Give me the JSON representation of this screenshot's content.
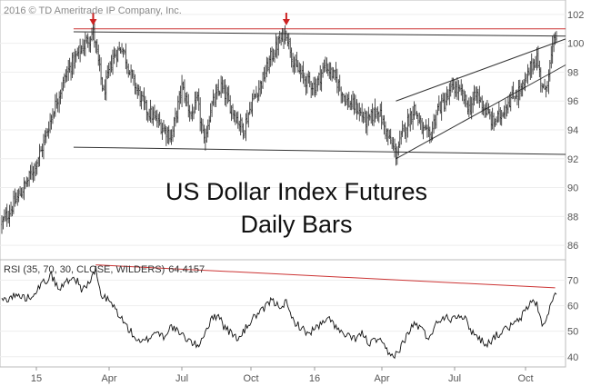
{
  "chart_data": [
    {
      "type": "ohlc",
      "copyright": "2016 © TD Ameritrade IP Company, Inc.",
      "title_line1": "US Dollar Index Futures",
      "title_line2": "Daily Bars",
      "ylim": [
        85,
        103
      ],
      "y_ticks": [
        86,
        88,
        90,
        92,
        94,
        96,
        98,
        100,
        102
      ],
      "x_ticks": [
        "15",
        "Apr",
        "Jul",
        "Oct",
        "16",
        "Apr",
        "Jul",
        "Oct"
      ],
      "anchors": [
        [
          0,
          87.5
        ],
        [
          10,
          89.0
        ],
        [
          20,
          90.5
        ],
        [
          30,
          92.5
        ],
        [
          40,
          95.5
        ],
        [
          50,
          98.0
        ],
        [
          60,
          99.5
        ],
        [
          70,
          100.8
        ],
        [
          78,
          96.5
        ],
        [
          85,
          99.0
        ],
        [
          92,
          99.8
        ],
        [
          100,
          97.5
        ],
        [
          110,
          95.5
        ],
        [
          120,
          94.5
        ],
        [
          130,
          93.5
        ],
        [
          138,
          97.0
        ],
        [
          145,
          95.0
        ],
        [
          150,
          96.0
        ],
        [
          155,
          93.0
        ],
        [
          160,
          95.5
        ],
        [
          168,
          97.0
        ],
        [
          176,
          95.5
        ],
        [
          185,
          94.0
        ],
        [
          192,
          96.0
        ],
        [
          200,
          97.5
        ],
        [
          206,
          99.0
        ],
        [
          212,
          100.0
        ],
        [
          218,
          100.8
        ],
        [
          224,
          98.5
        ],
        [
          232,
          97.5
        ],
        [
          240,
          97.0
        ],
        [
          248,
          98.5
        ],
        [
          256,
          97.5
        ],
        [
          264,
          96.0
        ],
        [
          272,
          95.5
        ],
        [
          280,
          94.5
        ],
        [
          288,
          95.5
        ],
        [
          296,
          93.5
        ],
        [
          302,
          92.3
        ],
        [
          308,
          94.0
        ],
        [
          316,
          95.5
        ],
        [
          322,
          94.0
        ],
        [
          328,
          93.5
        ],
        [
          334,
          95.5
        ],
        [
          340,
          96.0
        ],
        [
          346,
          97.0
        ],
        [
          352,
          96.5
        ],
        [
          358,
          95.5
        ],
        [
          364,
          96.5
        ],
        [
          370,
          95.5
        ],
        [
          376,
          94.5
        ],
        [
          382,
          95.0
        ],
        [
          388,
          96.0
        ],
        [
          394,
          96.5
        ],
        [
          400,
          97.0
        ],
        [
          406,
          98.5
        ],
        [
          410,
          99.0
        ],
        [
          413,
          97.5
        ],
        [
          416,
          96.5
        ],
        [
          420,
          98.5
        ],
        [
          424,
          100.5
        ]
      ],
      "trendlines": [
        {
          "points": [
            [
              55,
              101.0
            ],
            [
              432,
              101.0
            ]
          ],
          "color": "#cc3333"
        },
        {
          "points": [
            [
              55,
              100.8
            ],
            [
              432,
              100.5
            ]
          ],
          "color": "#333333"
        },
        {
          "points": [
            [
              55,
              92.8
            ],
            [
              432,
              92.3
            ]
          ],
          "color": "#333333"
        },
        {
          "points": [
            [
              302,
              92.0
            ],
            [
              432,
              98.5
            ]
          ],
          "color": "#333333"
        },
        {
          "points": [
            [
              302,
              96.0
            ],
            [
              432,
              100.3
            ]
          ],
          "color": "#333333"
        }
      ],
      "markers": [
        {
          "x": 70,
          "y": 101.3,
          "color": "#cc2222"
        },
        {
          "x": 218,
          "y": 101.3,
          "color": "#cc2222"
        }
      ]
    },
    {
      "type": "line",
      "indicator_label": "RSI (35, 70, 30, CLOSE, WILDERS)",
      "indicator_value": "64.4157",
      "ylim": [
        36,
        78
      ],
      "y_ticks": [
        40,
        50,
        60,
        70
      ],
      "series": [
        {
          "anchors": [
            [
              0,
              62.0
            ],
            [
              10,
              64.0
            ],
            [
              20,
              63.0
            ],
            [
              30,
              68.0
            ],
            [
              38,
              72.0
            ],
            [
              44,
              66.0
            ],
            [
              50,
              70.0
            ],
            [
              56,
              71.0
            ],
            [
              62,
              66.0
            ],
            [
              68,
              70.0
            ],
            [
              72,
              74.0
            ],
            [
              76,
              64.0
            ],
            [
              82,
              62.0
            ],
            [
              88,
              58.0
            ],
            [
              94,
              53.0
            ],
            [
              100,
              49.0
            ],
            [
              106,
              45.0
            ],
            [
              112,
              47.0
            ],
            [
              118,
              50.0
            ],
            [
              124,
              48.0
            ],
            [
              130,
              52.0
            ],
            [
              136,
              49.0
            ],
            [
              142,
              47.0
            ],
            [
              150,
              44.0
            ],
            [
              156,
              50.0
            ],
            [
              160,
              54.0
            ],
            [
              166,
              57.0
            ],
            [
              170,
              52.0
            ],
            [
              176,
              49.0
            ],
            [
              182,
              47.0
            ],
            [
              188,
              52.0
            ],
            [
              194,
              56.0
            ],
            [
              200,
              58.0
            ],
            [
              206,
              62.0
            ],
            [
              212,
              60.0
            ],
            [
              218,
              61.0
            ],
            [
              222,
              55.0
            ],
            [
              228,
              52.0
            ],
            [
              234,
              49.0
            ],
            [
              240,
              51.0
            ],
            [
              246,
              53.0
            ],
            [
              252,
              55.0
            ],
            [
              258,
              50.0
            ],
            [
              264,
              48.0
            ],
            [
              270,
              47.0
            ],
            [
              276,
              49.0
            ],
            [
              282,
              45.0
            ],
            [
              288,
              47.0
            ],
            [
              294,
              43.0
            ],
            [
              298,
              40.0
            ],
            [
              304,
              42.0
            ],
            [
              310,
              48.0
            ],
            [
              316,
              53.0
            ],
            [
              322,
              51.0
            ],
            [
              326,
              47.0
            ],
            [
              332,
              52.0
            ],
            [
              338,
              56.0
            ],
            [
              344,
              55.0
            ],
            [
              350,
              57.0
            ],
            [
              356,
              54.0
            ],
            [
              360,
              50.0
            ],
            [
              366,
              47.0
            ],
            [
              372,
              45.0
            ],
            [
              378,
              48.0
            ],
            [
              384,
              50.0
            ],
            [
              390,
              52.0
            ],
            [
              396,
              54.0
            ],
            [
              400,
              57.0
            ],
            [
              406,
              62.0
            ],
            [
              410,
              61.0
            ],
            [
              413,
              54.0
            ],
            [
              416,
              52.0
            ],
            [
              420,
              60.0
            ],
            [
              424,
              64.4
            ]
          ],
          "color": "#111111"
        }
      ],
      "trendlines": [
        {
          "points": [
            [
              72,
              76.0
            ],
            [
              424,
              67.0
            ]
          ],
          "color": "#cc3333"
        }
      ]
    }
  ]
}
